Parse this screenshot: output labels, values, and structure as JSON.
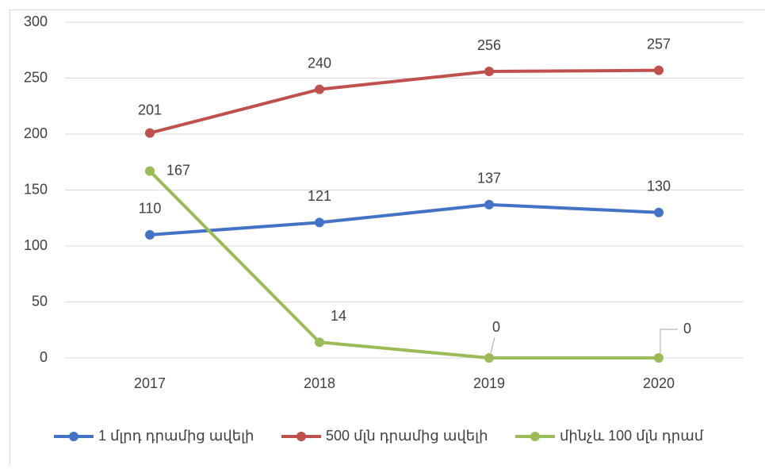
{
  "chart_data": {
    "type": "line",
    "categories": [
      "2017",
      "2018",
      "2019",
      "2020"
    ],
    "series": [
      {
        "name": "1 մլրդ դրամից ավելի",
        "color": "#4472c4",
        "values": [
          110,
          121,
          137,
          130
        ]
      },
      {
        "name": "500 մլն դրամից ավելի",
        "color": "#c0504d",
        "values": [
          201,
          240,
          256,
          257
        ]
      },
      {
        "name": "մինչև 100 մլն դրամ",
        "color": "#9bbb59",
        "values": [
          167,
          14,
          0,
          0
        ]
      }
    ],
    "ylim": [
      0,
      300
    ],
    "yticks": [
      0,
      50,
      100,
      150,
      200,
      250,
      300
    ],
    "grid": true,
    "legend": "bottom"
  }
}
